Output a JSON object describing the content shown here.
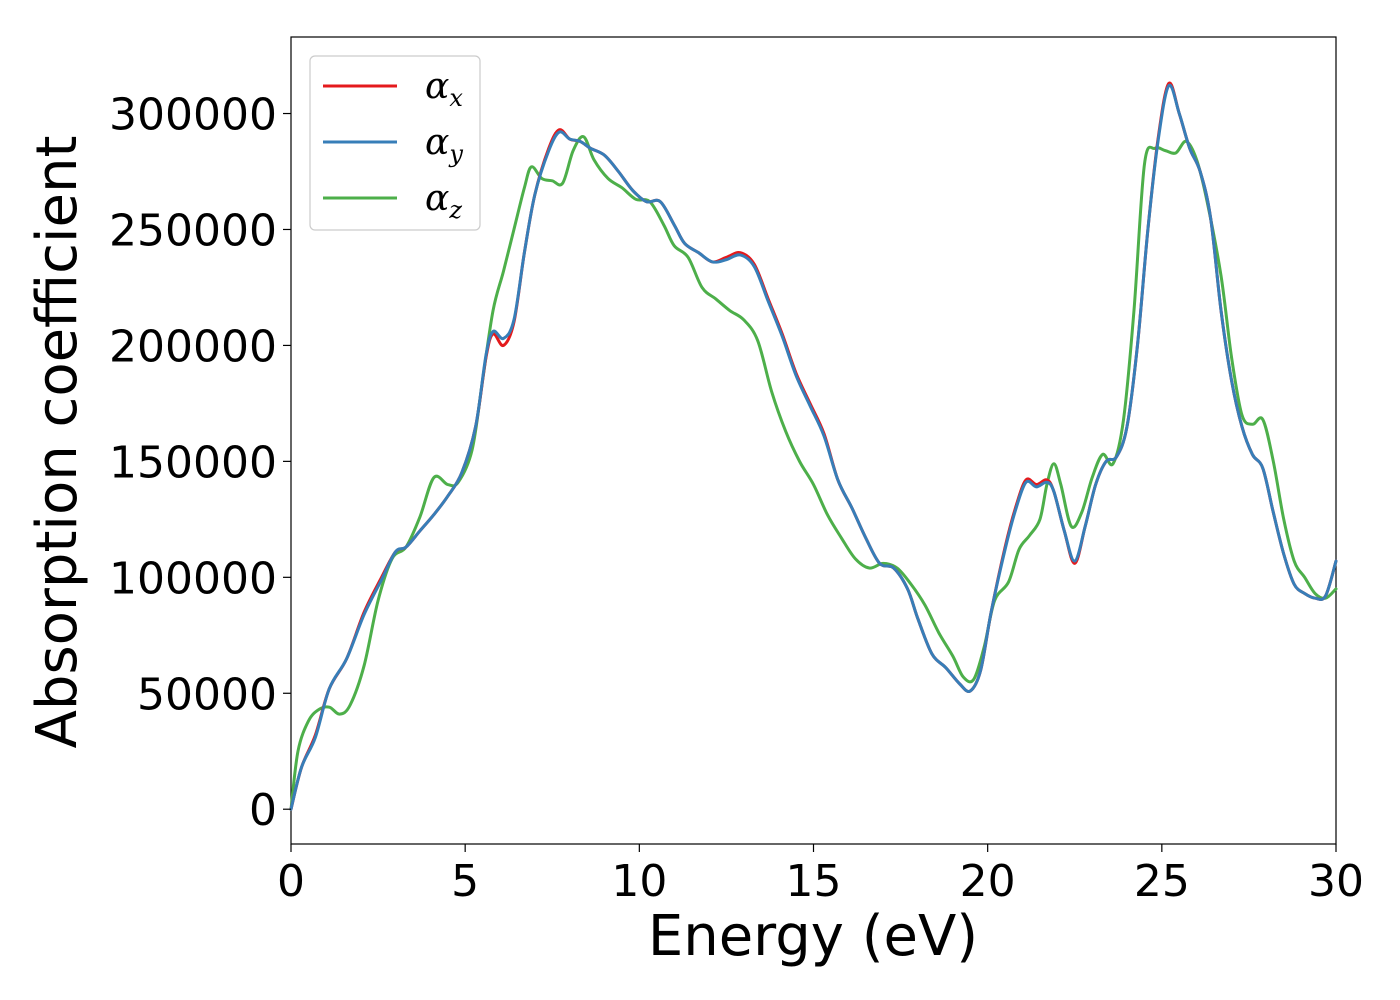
{
  "chart_data": {
    "type": "line",
    "title": "",
    "xlabel": "Energy (eV)",
    "ylabel": "Absorption coefficient",
    "xlim": [
      0,
      30
    ],
    "ylim": [
      -15000,
      333000
    ],
    "xticks": [
      0,
      5,
      10,
      15,
      20,
      25,
      30
    ],
    "xtick_labels": [
      "0",
      "5",
      "10",
      "15",
      "20",
      "25",
      "30"
    ],
    "yticks": [
      0,
      50000,
      100000,
      150000,
      200000,
      250000,
      300000
    ],
    "ytick_labels": [
      "0",
      "50000",
      "100000",
      "150000",
      "200000",
      "250000",
      "300000"
    ],
    "grid": false,
    "legend_position": "top-left",
    "series": [
      {
        "name": "αx",
        "symbol": "α",
        "subscript": "x",
        "color": "#e41a1c",
        "points": [
          [
            0,
            0
          ],
          [
            0.3,
            18000
          ],
          [
            0.7,
            32000
          ],
          [
            1.1,
            52000
          ],
          [
            1.6,
            65000
          ],
          [
            2.1,
            85000
          ],
          [
            2.6,
            100000
          ],
          [
            3.0,
            111000
          ],
          [
            3.3,
            113000
          ],
          [
            3.7,
            120000
          ],
          [
            4.1,
            127000
          ],
          [
            4.5,
            135000
          ],
          [
            4.9,
            145000
          ],
          [
            5.3,
            165000
          ],
          [
            5.6,
            195000
          ],
          [
            5.8,
            205000
          ],
          [
            6.1,
            200000
          ],
          [
            6.4,
            210000
          ],
          [
            6.7,
            240000
          ],
          [
            7.0,
            265000
          ],
          [
            7.4,
            285000
          ],
          [
            7.7,
            293000
          ],
          [
            8.0,
            289000
          ],
          [
            8.3,
            288000
          ],
          [
            8.6,
            285000
          ],
          [
            9.0,
            282000
          ],
          [
            9.4,
            275000
          ],
          [
            9.8,
            267000
          ],
          [
            10.2,
            262000
          ],
          [
            10.6,
            262000
          ],
          [
            11.0,
            252000
          ],
          [
            11.3,
            244000
          ],
          [
            11.7,
            240000
          ],
          [
            12.1,
            236000
          ],
          [
            12.5,
            238000
          ],
          [
            12.9,
            240000
          ],
          [
            13.3,
            235000
          ],
          [
            13.7,
            220000
          ],
          [
            14.1,
            205000
          ],
          [
            14.5,
            188000
          ],
          [
            14.9,
            175000
          ],
          [
            15.3,
            162000
          ],
          [
            15.7,
            142000
          ],
          [
            16.1,
            130000
          ],
          [
            16.5,
            117000
          ],
          [
            16.9,
            106000
          ],
          [
            17.3,
            104000
          ],
          [
            17.7,
            95000
          ],
          [
            18.0,
            82000
          ],
          [
            18.4,
            67000
          ],
          [
            18.8,
            61000
          ],
          [
            19.2,
            54000
          ],
          [
            19.5,
            51000
          ],
          [
            19.8,
            60000
          ],
          [
            20.1,
            85000
          ],
          [
            20.5,
            113000
          ],
          [
            20.8,
            130000
          ],
          [
            21.1,
            142000
          ],
          [
            21.4,
            140000
          ],
          [
            21.7,
            142000
          ],
          [
            21.9,
            137000
          ],
          [
            22.2,
            120000
          ],
          [
            22.5,
            106000
          ],
          [
            22.8,
            122000
          ],
          [
            23.1,
            140000
          ],
          [
            23.4,
            150000
          ],
          [
            23.7,
            152000
          ],
          [
            24.0,
            165000
          ],
          [
            24.3,
            200000
          ],
          [
            24.6,
            250000
          ],
          [
            24.9,
            290000
          ],
          [
            25.2,
            313000
          ],
          [
            25.5,
            300000
          ],
          [
            25.8,
            285000
          ],
          [
            26.1,
            275000
          ],
          [
            26.4,
            255000
          ],
          [
            26.7,
            215000
          ],
          [
            27.0,
            185000
          ],
          [
            27.3,
            165000
          ],
          [
            27.6,
            153000
          ],
          [
            27.9,
            147000
          ],
          [
            28.2,
            128000
          ],
          [
            28.5,
            110000
          ],
          [
            28.8,
            97000
          ],
          [
            29.1,
            93000
          ],
          [
            29.4,
            91000
          ],
          [
            29.7,
            92000
          ],
          [
            30.0,
            107000
          ]
        ]
      },
      {
        "name": "αy",
        "symbol": "α",
        "subscript": "y",
        "color": "#377eb8",
        "points": [
          [
            0,
            0
          ],
          [
            0.3,
            18000
          ],
          [
            0.7,
            31000
          ],
          [
            1.1,
            52000
          ],
          [
            1.6,
            65000
          ],
          [
            2.1,
            84000
          ],
          [
            2.6,
            99000
          ],
          [
            3.0,
            111000
          ],
          [
            3.3,
            113000
          ],
          [
            3.7,
            120000
          ],
          [
            4.1,
            127000
          ],
          [
            4.5,
            135000
          ],
          [
            4.9,
            145000
          ],
          [
            5.3,
            165000
          ],
          [
            5.6,
            196000
          ],
          [
            5.8,
            206000
          ],
          [
            6.1,
            203000
          ],
          [
            6.4,
            211000
          ],
          [
            6.7,
            240000
          ],
          [
            7.0,
            265000
          ],
          [
            7.4,
            284000
          ],
          [
            7.7,
            292000
          ],
          [
            8.0,
            289000
          ],
          [
            8.3,
            288000
          ],
          [
            8.6,
            285000
          ],
          [
            9.0,
            282000
          ],
          [
            9.4,
            275000
          ],
          [
            9.8,
            267000
          ],
          [
            10.2,
            262000
          ],
          [
            10.6,
            262000
          ],
          [
            11.0,
            252000
          ],
          [
            11.3,
            244000
          ],
          [
            11.7,
            240000
          ],
          [
            12.1,
            236000
          ],
          [
            12.5,
            237000
          ],
          [
            12.9,
            239000
          ],
          [
            13.3,
            234000
          ],
          [
            13.7,
            219000
          ],
          [
            14.1,
            204000
          ],
          [
            14.5,
            187000
          ],
          [
            14.9,
            174000
          ],
          [
            15.3,
            161000
          ],
          [
            15.7,
            142000
          ],
          [
            16.1,
            130000
          ],
          [
            16.5,
            117000
          ],
          [
            16.9,
            106000
          ],
          [
            17.3,
            104000
          ],
          [
            17.7,
            95000
          ],
          [
            18.0,
            82000
          ],
          [
            18.4,
            67000
          ],
          [
            18.8,
            61000
          ],
          [
            19.2,
            54000
          ],
          [
            19.5,
            51000
          ],
          [
            19.8,
            60000
          ],
          [
            20.1,
            85000
          ],
          [
            20.5,
            112000
          ],
          [
            20.8,
            129000
          ],
          [
            21.1,
            141000
          ],
          [
            21.4,
            139000
          ],
          [
            21.7,
            141000
          ],
          [
            21.9,
            137000
          ],
          [
            22.2,
            120000
          ],
          [
            22.5,
            107000
          ],
          [
            22.8,
            122000
          ],
          [
            23.1,
            140000
          ],
          [
            23.4,
            150000
          ],
          [
            23.7,
            152000
          ],
          [
            24.0,
            165000
          ],
          [
            24.3,
            200000
          ],
          [
            24.6,
            250000
          ],
          [
            24.9,
            289000
          ],
          [
            25.2,
            312000
          ],
          [
            25.5,
            300000
          ],
          [
            25.8,
            285000
          ],
          [
            26.1,
            275000
          ],
          [
            26.4,
            255000
          ],
          [
            26.7,
            215000
          ],
          [
            27.0,
            185000
          ],
          [
            27.3,
            165000
          ],
          [
            27.6,
            153000
          ],
          [
            27.9,
            147000
          ],
          [
            28.2,
            128000
          ],
          [
            28.5,
            110000
          ],
          [
            28.8,
            97000
          ],
          [
            29.1,
            93000
          ],
          [
            29.4,
            91000
          ],
          [
            29.7,
            92000
          ],
          [
            30.0,
            107000
          ]
        ]
      },
      {
        "name": "αz",
        "symbol": "α",
        "subscript": "z",
        "color": "#4daf4a",
        "points": [
          [
            0,
            0
          ],
          [
            0.2,
            25000
          ],
          [
            0.5,
            38000
          ],
          [
            0.8,
            43000
          ],
          [
            1.1,
            44000
          ],
          [
            1.4,
            41000
          ],
          [
            1.7,
            45000
          ],
          [
            2.1,
            62000
          ],
          [
            2.5,
            90000
          ],
          [
            2.9,
            108000
          ],
          [
            3.3,
            113000
          ],
          [
            3.7,
            126000
          ],
          [
            4.1,
            143000
          ],
          [
            4.5,
            140000
          ],
          [
            4.8,
            141000
          ],
          [
            5.2,
            155000
          ],
          [
            5.5,
            185000
          ],
          [
            5.8,
            215000
          ],
          [
            6.1,
            232000
          ],
          [
            6.4,
            250000
          ],
          [
            6.7,
            268000
          ],
          [
            6.9,
            277000
          ],
          [
            7.2,
            272000
          ],
          [
            7.5,
            271000
          ],
          [
            7.8,
            270000
          ],
          [
            8.1,
            284000
          ],
          [
            8.4,
            290000
          ],
          [
            8.7,
            280000
          ],
          [
            9.1,
            272000
          ],
          [
            9.5,
            268000
          ],
          [
            9.9,
            263000
          ],
          [
            10.3,
            262000
          ],
          [
            10.7,
            252000
          ],
          [
            11.0,
            243000
          ],
          [
            11.4,
            238000
          ],
          [
            11.8,
            225000
          ],
          [
            12.2,
            220000
          ],
          [
            12.6,
            215000
          ],
          [
            13.0,
            211000
          ],
          [
            13.4,
            202000
          ],
          [
            13.8,
            180000
          ],
          [
            14.2,
            163000
          ],
          [
            14.6,
            150000
          ],
          [
            15.0,
            140000
          ],
          [
            15.4,
            127000
          ],
          [
            15.8,
            117000
          ],
          [
            16.2,
            108000
          ],
          [
            16.6,
            104000
          ],
          [
            17.0,
            106000
          ],
          [
            17.4,
            104000
          ],
          [
            17.8,
            97000
          ],
          [
            18.2,
            88000
          ],
          [
            18.6,
            76000
          ],
          [
            19.0,
            66000
          ],
          [
            19.3,
            57000
          ],
          [
            19.6,
            56000
          ],
          [
            19.9,
            70000
          ],
          [
            20.2,
            90000
          ],
          [
            20.6,
            98000
          ],
          [
            20.9,
            112000
          ],
          [
            21.2,
            118000
          ],
          [
            21.5,
            125000
          ],
          [
            21.7,
            140000
          ],
          [
            21.9,
            149000
          ],
          [
            22.1,
            140000
          ],
          [
            22.4,
            122000
          ],
          [
            22.7,
            128000
          ],
          [
            23.0,
            143000
          ],
          [
            23.3,
            153000
          ],
          [
            23.6,
            149000
          ],
          [
            23.9,
            168000
          ],
          [
            24.2,
            215000
          ],
          [
            24.5,
            278000
          ],
          [
            24.8,
            285000
          ],
          [
            25.1,
            284000
          ],
          [
            25.4,
            283000
          ],
          [
            25.7,
            288000
          ],
          [
            26.0,
            280000
          ],
          [
            26.3,
            262000
          ],
          [
            26.7,
            230000
          ],
          [
            27.0,
            195000
          ],
          [
            27.3,
            170000
          ],
          [
            27.6,
            166000
          ],
          [
            27.9,
            168000
          ],
          [
            28.2,
            150000
          ],
          [
            28.5,
            125000
          ],
          [
            28.8,
            107000
          ],
          [
            29.1,
            100000
          ],
          [
            29.4,
            93000
          ],
          [
            29.7,
            91000
          ],
          [
            30.0,
            95000
          ]
        ]
      }
    ]
  }
}
